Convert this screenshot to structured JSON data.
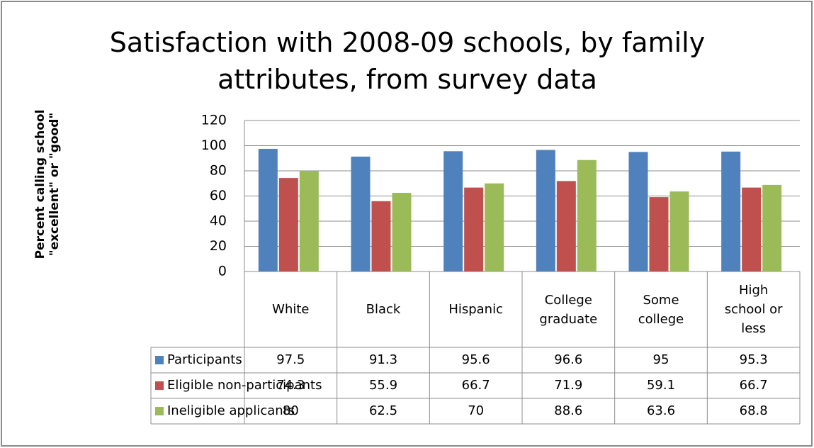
{
  "chart_data": {
    "type": "bar",
    "title": "Satisfaction with 2008-09 schools, by family attributes, from survey data",
    "y_label": "Percent calling school \"excellent\" or \"good\"",
    "categories": [
      "White",
      "Black",
      "Hispanic",
      "College graduate",
      "Some college",
      "High school or less"
    ],
    "series": [
      {
        "name": "Participants",
        "color": "#4f81bd",
        "values": [
          97.5,
          91.3,
          95.6,
          96.6,
          95,
          95.3
        ]
      },
      {
        "name": "Eligible non-participants",
        "color": "#c0504d",
        "values": [
          74.3,
          55.9,
          66.7,
          71.9,
          59.1,
          66.7
        ]
      },
      {
        "name": "Ineligible applicants",
        "color": "#9bbb59",
        "values": [
          80,
          62.5,
          70,
          88.6,
          63.6,
          68.8
        ]
      }
    ],
    "ylim": [
      0,
      120
    ],
    "yticks": [
      0,
      20,
      40,
      60,
      80,
      100,
      120
    ],
    "grid": true
  }
}
